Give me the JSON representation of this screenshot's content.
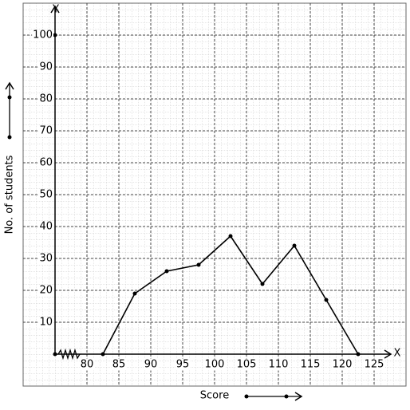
{
  "chart_data": {
    "type": "line",
    "x_label": "Score",
    "y_label": "No. of students",
    "x_axis_name": "X",
    "y_axis_name": "Y",
    "x": [
      82.5,
      87.5,
      92.5,
      97.5,
      102.5,
      107.5,
      112.5,
      117.5,
      122.5
    ],
    "values": [
      0,
      19,
      26,
      28,
      37,
      22,
      34,
      17,
      0
    ],
    "color": "#000000",
    "xlim": [
      75,
      127.5
    ],
    "xticks": [
      80,
      85,
      90,
      95,
      100,
      105,
      110,
      115,
      120,
      125
    ],
    "ylim": [
      0,
      110
    ],
    "yticks": [
      10,
      20,
      30,
      40,
      50,
      60,
      70,
      80,
      90,
      100
    ],
    "grid": true
  }
}
